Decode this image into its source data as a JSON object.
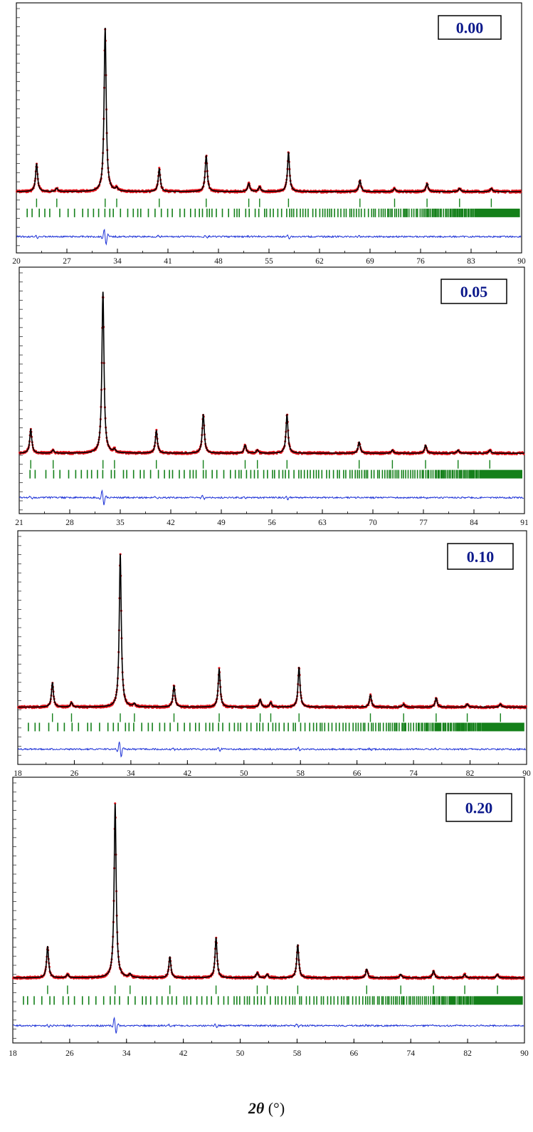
{
  "figure": {
    "xlabel_prefix": "2",
    "xlabel_symbol": "θ",
    "xlabel_unit": " (°)"
  },
  "colors": {
    "observed": "#e8141c",
    "calculated": "#000000",
    "bragg": "#14801a",
    "difference": "#1a2fd6",
    "label_text": "#0d1a8c"
  },
  "chart_data": [
    {
      "type": "line",
      "label": "0.00",
      "xlim": [
        20,
        90
      ],
      "xticks": [
        20,
        27,
        34,
        41,
        48,
        55,
        62,
        69,
        76,
        83,
        90
      ],
      "peaks": [
        [
          22.8,
          0.17
        ],
        [
          25.6,
          0.02
        ],
        [
          32.3,
          1.0
        ],
        [
          33.9,
          0.02
        ],
        [
          39.8,
          0.14
        ],
        [
          46.3,
          0.22
        ],
        [
          52.2,
          0.05
        ],
        [
          53.7,
          0.03
        ],
        [
          57.7,
          0.24
        ],
        [
          67.6,
          0.07
        ],
        [
          72.4,
          0.02
        ],
        [
          76.9,
          0.05
        ],
        [
          81.4,
          0.02
        ],
        [
          85.8,
          0.02
        ]
      ]
    },
    {
      "type": "line",
      "label": "0.05",
      "xlim": [
        21,
        91
      ],
      "xticks": [
        21,
        28,
        35,
        42,
        49,
        56,
        63,
        70,
        77,
        84,
        91
      ],
      "peaks": [
        [
          22.6,
          0.15
        ],
        [
          25.7,
          0.02
        ],
        [
          32.6,
          1.0
        ],
        [
          34.2,
          0.02
        ],
        [
          40.0,
          0.14
        ],
        [
          46.5,
          0.24
        ],
        [
          52.3,
          0.05
        ],
        [
          54.0,
          0.02
        ],
        [
          58.1,
          0.24
        ],
        [
          68.1,
          0.07
        ],
        [
          72.7,
          0.02
        ],
        [
          77.3,
          0.05
        ],
        [
          81.8,
          0.02
        ],
        [
          86.2,
          0.02
        ]
      ]
    },
    {
      "type": "line",
      "label": "0.10",
      "xlim": [
        18,
        90
      ],
      "xticks": [
        18,
        26,
        34,
        42,
        50,
        58,
        66,
        74,
        82,
        90
      ],
      "peaks": [
        [
          22.9,
          0.16
        ],
        [
          25.6,
          0.03
        ],
        [
          32.5,
          1.0
        ],
        [
          34.5,
          0.02
        ],
        [
          40.1,
          0.14
        ],
        [
          46.5,
          0.25
        ],
        [
          52.3,
          0.05
        ],
        [
          53.8,
          0.03
        ],
        [
          57.8,
          0.26
        ],
        [
          67.9,
          0.08
        ],
        [
          72.6,
          0.02
        ],
        [
          77.2,
          0.06
        ],
        [
          81.6,
          0.02
        ],
        [
          86.3,
          0.02
        ]
      ]
    },
    {
      "type": "line",
      "label": "0.20",
      "xlim": [
        18,
        90
      ],
      "xticks": [
        18,
        26,
        34,
        42,
        50,
        58,
        66,
        74,
        82,
        90
      ],
      "peaks": [
        [
          22.9,
          0.18
        ],
        [
          25.7,
          0.02
        ],
        [
          32.4,
          1.0
        ],
        [
          34.5,
          0.02
        ],
        [
          40.1,
          0.12
        ],
        [
          46.6,
          0.23
        ],
        [
          52.4,
          0.03
        ],
        [
          53.8,
          0.02
        ],
        [
          58.1,
          0.19
        ],
        [
          67.8,
          0.05
        ],
        [
          72.6,
          0.02
        ],
        [
          77.2,
          0.04
        ],
        [
          81.6,
          0.02
        ],
        [
          86.2,
          0.02
        ]
      ]
    }
  ]
}
